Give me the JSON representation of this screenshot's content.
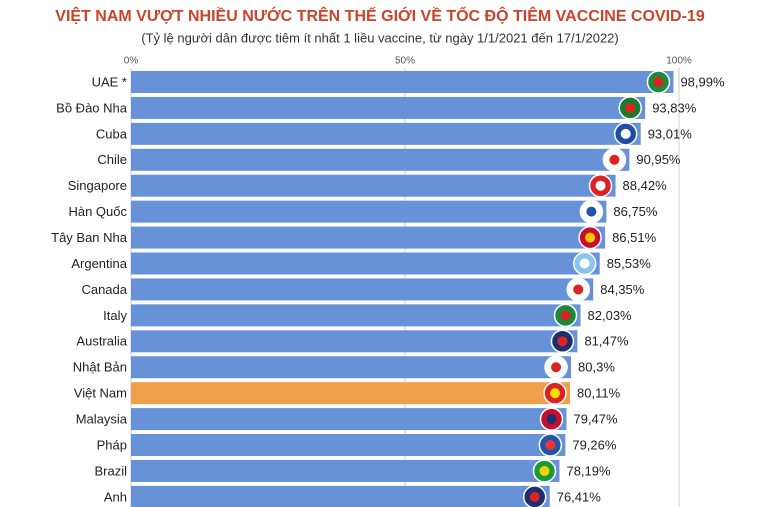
{
  "chart_data": {
    "type": "hbar",
    "title": "VIỆT NAM VƯỢT NHIỀU NƯỚC TRÊN THẾ GIỚI VỀ TỐC ĐỘ TIÊM VACCINE COVID-19",
    "subtitle": "(Tỷ lệ người dân được tiêm ít nhất 1 liều vaccine, từ ngày 1/1/2021 đến 17/1/2022)",
    "categories": [
      "UAE *",
      "Bồ Đào Nha",
      "Cuba",
      "Chile",
      "Singapore",
      "Hàn Quốc",
      "Tây Ban Nha",
      "Argentina",
      "Canada",
      "Italy",
      "Australia",
      "Nhật Bản",
      "Việt Nam",
      "Malaysia",
      "Pháp",
      "Brazil",
      "Anh"
    ],
    "values": [
      98.99,
      93.83,
      93.01,
      90.95,
      88.42,
      86.75,
      86.51,
      85.53,
      84.35,
      82.03,
      81.47,
      80.3,
      80.11,
      79.47,
      79.26,
      78.19,
      76.41
    ],
    "value_labels": [
      "98,99%",
      "93,83%",
      "93,01%",
      "90,95%",
      "88,42%",
      "86,75%",
      "86,51%",
      "85,53%",
      "84,35%",
      "82,03%",
      "81,47%",
      "80,3%",
      "80,11%",
      "79,47%",
      "79,26%",
      "78,19%",
      "76,41%"
    ],
    "colors": [
      "#6792d8",
      "#6792d8",
      "#6792d8",
      "#6792d8",
      "#6792d8",
      "#6792d8",
      "#6792d8",
      "#6792d8",
      "#6792d8",
      "#6792d8",
      "#6792d8",
      "#6792d8",
      "#f0a04b",
      "#6792d8",
      "#6792d8",
      "#6792d8",
      "#6792d8"
    ],
    "xlim": [
      0,
      100
    ],
    "xticks": [
      {
        "value": 0,
        "label": "0%"
      },
      {
        "value": 50,
        "label": "50%"
      },
      {
        "value": 100,
        "label": "100%"
      }
    ],
    "grid": true
  }
}
